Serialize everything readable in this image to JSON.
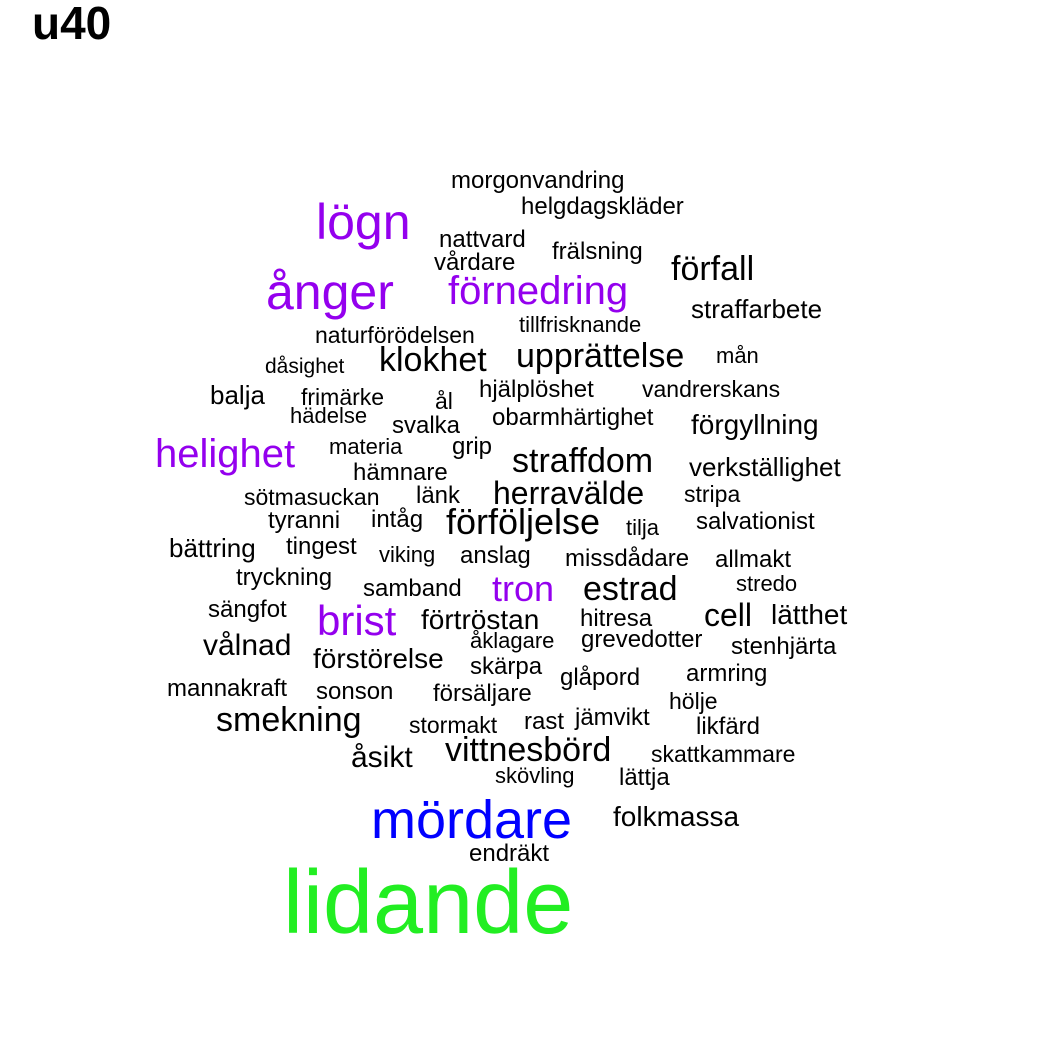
{
  "title": "u40",
  "colors": {
    "green": "#22ee22",
    "blue": "#0000ff",
    "purple": "#9400ee",
    "black": "#000000"
  },
  "words": [
    {
      "text": "morgonvandring",
      "color": "black"
    },
    {
      "text": "helgdagskläder",
      "color": "black"
    },
    {
      "text": "lögn",
      "color": "purple"
    },
    {
      "text": "nattvard",
      "color": "black"
    },
    {
      "text": "vårdare",
      "color": "black"
    },
    {
      "text": "frälsning",
      "color": "black"
    },
    {
      "text": "förfall",
      "color": "black"
    },
    {
      "text": "ånger",
      "color": "purple"
    },
    {
      "text": "förnedring",
      "color": "purple"
    },
    {
      "text": "straffarbete",
      "color": "black"
    },
    {
      "text": "tillfrisknande",
      "color": "black"
    },
    {
      "text": "naturförödelsen",
      "color": "black"
    },
    {
      "text": "klokhet",
      "color": "black"
    },
    {
      "text": "upprättelse",
      "color": "black"
    },
    {
      "text": "mån",
      "color": "black"
    },
    {
      "text": "dåsighet",
      "color": "black"
    },
    {
      "text": "balja",
      "color": "black"
    },
    {
      "text": "frimärke",
      "color": "black"
    },
    {
      "text": "ål",
      "color": "black"
    },
    {
      "text": "hjälplöshet",
      "color": "black"
    },
    {
      "text": "vandrerskans",
      "color": "black"
    },
    {
      "text": "hädelse",
      "color": "black"
    },
    {
      "text": "svalka",
      "color": "black"
    },
    {
      "text": "obarmhärtighet",
      "color": "black"
    },
    {
      "text": "förgyllning",
      "color": "black"
    },
    {
      "text": "helighet",
      "color": "purple"
    },
    {
      "text": "materia",
      "color": "black"
    },
    {
      "text": "grip",
      "color": "black"
    },
    {
      "text": "straffdom",
      "color": "black"
    },
    {
      "text": "verkställighet",
      "color": "black"
    },
    {
      "text": "hämnare",
      "color": "black"
    },
    {
      "text": "sötmasuckan",
      "color": "black"
    },
    {
      "text": "länk",
      "color": "black"
    },
    {
      "text": "herravälde",
      "color": "black"
    },
    {
      "text": "stripa",
      "color": "black"
    },
    {
      "text": "tyranni",
      "color": "black"
    },
    {
      "text": "intåg",
      "color": "black"
    },
    {
      "text": "förföljelse",
      "color": "black"
    },
    {
      "text": "tilja",
      "color": "black"
    },
    {
      "text": "salvationist",
      "color": "black"
    },
    {
      "text": "bättring",
      "color": "black"
    },
    {
      "text": "tingest",
      "color": "black"
    },
    {
      "text": "viking",
      "color": "black"
    },
    {
      "text": "anslag",
      "color": "black"
    },
    {
      "text": "missdådare",
      "color": "black"
    },
    {
      "text": "allmakt",
      "color": "black"
    },
    {
      "text": "tryckning",
      "color": "black"
    },
    {
      "text": "samband",
      "color": "black"
    },
    {
      "text": "tron",
      "color": "purple"
    },
    {
      "text": "estrad",
      "color": "black"
    },
    {
      "text": "stredo",
      "color": "black"
    },
    {
      "text": "sängfot",
      "color": "black"
    },
    {
      "text": "brist",
      "color": "purple"
    },
    {
      "text": "förtröstan",
      "color": "black"
    },
    {
      "text": "hitresa",
      "color": "black"
    },
    {
      "text": "cell",
      "color": "black"
    },
    {
      "text": "lätthet",
      "color": "black"
    },
    {
      "text": "vålnad",
      "color": "black"
    },
    {
      "text": "åklagare",
      "color": "black"
    },
    {
      "text": "grevedotter",
      "color": "black"
    },
    {
      "text": "stenhjärta",
      "color": "black"
    },
    {
      "text": "förstörelse",
      "color": "black"
    },
    {
      "text": "skärpa",
      "color": "black"
    },
    {
      "text": "glåpord",
      "color": "black"
    },
    {
      "text": "armring",
      "color": "black"
    },
    {
      "text": "mannakraft",
      "color": "black"
    },
    {
      "text": "sonson",
      "color": "black"
    },
    {
      "text": "försäljare",
      "color": "black"
    },
    {
      "text": "hölje",
      "color": "black"
    },
    {
      "text": "smekning",
      "color": "black"
    },
    {
      "text": "stormakt",
      "color": "black"
    },
    {
      "text": "rast",
      "color": "black"
    },
    {
      "text": "jämvikt",
      "color": "black"
    },
    {
      "text": "likfärd",
      "color": "black"
    },
    {
      "text": "åsikt",
      "color": "black"
    },
    {
      "text": "vittnesbörd",
      "color": "black"
    },
    {
      "text": "skattkammare",
      "color": "black"
    },
    {
      "text": "skövling",
      "color": "black"
    },
    {
      "text": "lättja",
      "color": "black"
    },
    {
      "text": "mördare",
      "color": "blue"
    },
    {
      "text": "folkmassa",
      "color": "black"
    },
    {
      "text": "endräkt",
      "color": "black"
    },
    {
      "text": "lidande",
      "color": "green"
    }
  ]
}
